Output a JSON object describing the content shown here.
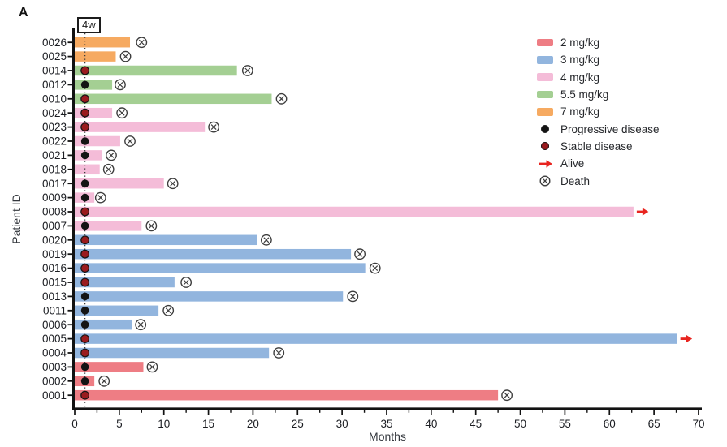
{
  "figure_label": "A",
  "annotation_4w": {
    "label": "4w",
    "month": 1.15
  },
  "axes": {
    "x_label": "Months",
    "y_label": "Patient ID",
    "x_ticks": [
      0,
      5,
      10,
      15,
      20,
      25,
      30,
      35,
      40,
      45,
      50,
      55,
      60,
      65,
      70
    ],
    "x_minor_tick_step": 2.5,
    "xlim": [
      0,
      70
    ]
  },
  "legend": {
    "doses": [
      {
        "label": "2 mg/kg",
        "color": "#ee7d84"
      },
      {
        "label": "3 mg/kg",
        "color": "#92b5de"
      },
      {
        "label": "4 mg/kg",
        "color": "#f4bcd8"
      },
      {
        "label": "5.5 mg/kg",
        "color": "#a4cf93"
      },
      {
        "label": "7 mg/kg",
        "color": "#f6aa61"
      }
    ],
    "markers": [
      {
        "label": "Progressive disease",
        "type": "progressive",
        "color": "#141414"
      },
      {
        "label": "Stable disease",
        "type": "stable",
        "color": "#9a1b1e"
      },
      {
        "label": "Alive",
        "type": "alive",
        "color": "#e8241f"
      },
      {
        "label": "Death",
        "type": "death",
        "color": "#3d3d3d"
      }
    ]
  },
  "chart_data": {
    "type": "bar",
    "orientation": "horizontal",
    "title": "",
    "xlabel": "Months",
    "ylabel": "Patient ID",
    "xlim": [
      0,
      70
    ],
    "grid": false,
    "treatment_assessment_line_month": 1.15,
    "rows": [
      {
        "patient": "0026",
        "dose": "7 mg/kg",
        "duration_months": 6.2,
        "response": null,
        "outcome": "death",
        "outcome_month": 7.5
      },
      {
        "patient": "0025",
        "dose": "7 mg/kg",
        "duration_months": 4.6,
        "response": null,
        "outcome": "death",
        "outcome_month": 5.7
      },
      {
        "patient": "0014",
        "dose": "5.5 mg/kg",
        "duration_months": 18.2,
        "response": "stable",
        "outcome": "death",
        "outcome_month": 19.4
      },
      {
        "patient": "0012",
        "dose": "5.5 mg/kg",
        "duration_months": 4.2,
        "response": "progressive",
        "outcome": "death",
        "outcome_month": 5.1
      },
      {
        "patient": "0010",
        "dose": "5.5 mg/kg",
        "duration_months": 22.1,
        "response": "stable",
        "outcome": "death",
        "outcome_month": 23.2
      },
      {
        "patient": "0024",
        "dose": "4 mg/kg",
        "duration_months": 4.2,
        "response": "stable",
        "outcome": "death",
        "outcome_month": 5.3
      },
      {
        "patient": "0023",
        "dose": "4 mg/kg",
        "duration_months": 14.6,
        "response": "stable",
        "outcome": "death",
        "outcome_month": 15.6
      },
      {
        "patient": "0022",
        "dose": "4 mg/kg",
        "duration_months": 5.1,
        "response": "progressive",
        "outcome": "death",
        "outcome_month": 6.2
      },
      {
        "patient": "0021",
        "dose": "4 mg/kg",
        "duration_months": 3.1,
        "response": "progressive",
        "outcome": "death",
        "outcome_month": 4.1
      },
      {
        "patient": "0018",
        "dose": "4 mg/kg",
        "duration_months": 2.8,
        "response": null,
        "outcome": "death",
        "outcome_month": 3.8
      },
      {
        "patient": "0017",
        "dose": "4 mg/kg",
        "duration_months": 10.0,
        "response": "progressive",
        "outcome": "death",
        "outcome_month": 11.0
      },
      {
        "patient": "0009",
        "dose": "4 mg/kg",
        "duration_months": 2.2,
        "response": "progressive",
        "outcome": "death",
        "outcome_month": 2.9
      },
      {
        "patient": "0008",
        "dose": "4 mg/kg",
        "duration_months": 62.7,
        "response": "stable",
        "outcome": "alive",
        "outcome_month": null
      },
      {
        "patient": "0007",
        "dose": "4 mg/kg",
        "duration_months": 7.5,
        "response": "progressive",
        "outcome": "death",
        "outcome_month": 8.6
      },
      {
        "patient": "0020",
        "dose": "3 mg/kg",
        "duration_months": 20.5,
        "response": "stable",
        "outcome": "death",
        "outcome_month": 21.5
      },
      {
        "patient": "0019",
        "dose": "3 mg/kg",
        "duration_months": 31.0,
        "response": "stable",
        "outcome": "death",
        "outcome_month": 32.0
      },
      {
        "patient": "0016",
        "dose": "3 mg/kg",
        "duration_months": 32.6,
        "response": "stable",
        "outcome": "death",
        "outcome_month": 33.7
      },
      {
        "patient": "0015",
        "dose": "3 mg/kg",
        "duration_months": 11.2,
        "response": "stable",
        "outcome": "death",
        "outcome_month": 12.5
      },
      {
        "patient": "0013",
        "dose": "3 mg/kg",
        "duration_months": 30.1,
        "response": "progressive",
        "outcome": "death",
        "outcome_month": 31.2
      },
      {
        "patient": "0011",
        "dose": "3 mg/kg",
        "duration_months": 9.4,
        "response": "progressive",
        "outcome": "death",
        "outcome_month": 10.5
      },
      {
        "patient": "0006",
        "dose": "3 mg/kg",
        "duration_months": 6.4,
        "response": "progressive",
        "outcome": "death",
        "outcome_month": 7.4
      },
      {
        "patient": "0005",
        "dose": "3 mg/kg",
        "duration_months": 67.6,
        "response": "stable",
        "outcome": "alive",
        "outcome_month": null
      },
      {
        "patient": "0004",
        "dose": "3 mg/kg",
        "duration_months": 21.8,
        "response": "stable",
        "outcome": "death",
        "outcome_month": 22.9
      },
      {
        "patient": "0003",
        "dose": "2 mg/kg",
        "duration_months": 7.7,
        "response": "progressive",
        "outcome": "death",
        "outcome_month": 8.7
      },
      {
        "patient": "0002",
        "dose": "2 mg/kg",
        "duration_months": 2.2,
        "response": "progressive",
        "outcome": "death",
        "outcome_month": 3.3
      },
      {
        "patient": "0001",
        "dose": "2 mg/kg",
        "duration_months": 47.5,
        "response": "stable",
        "outcome": "death",
        "outcome_month": 48.5
      }
    ]
  }
}
